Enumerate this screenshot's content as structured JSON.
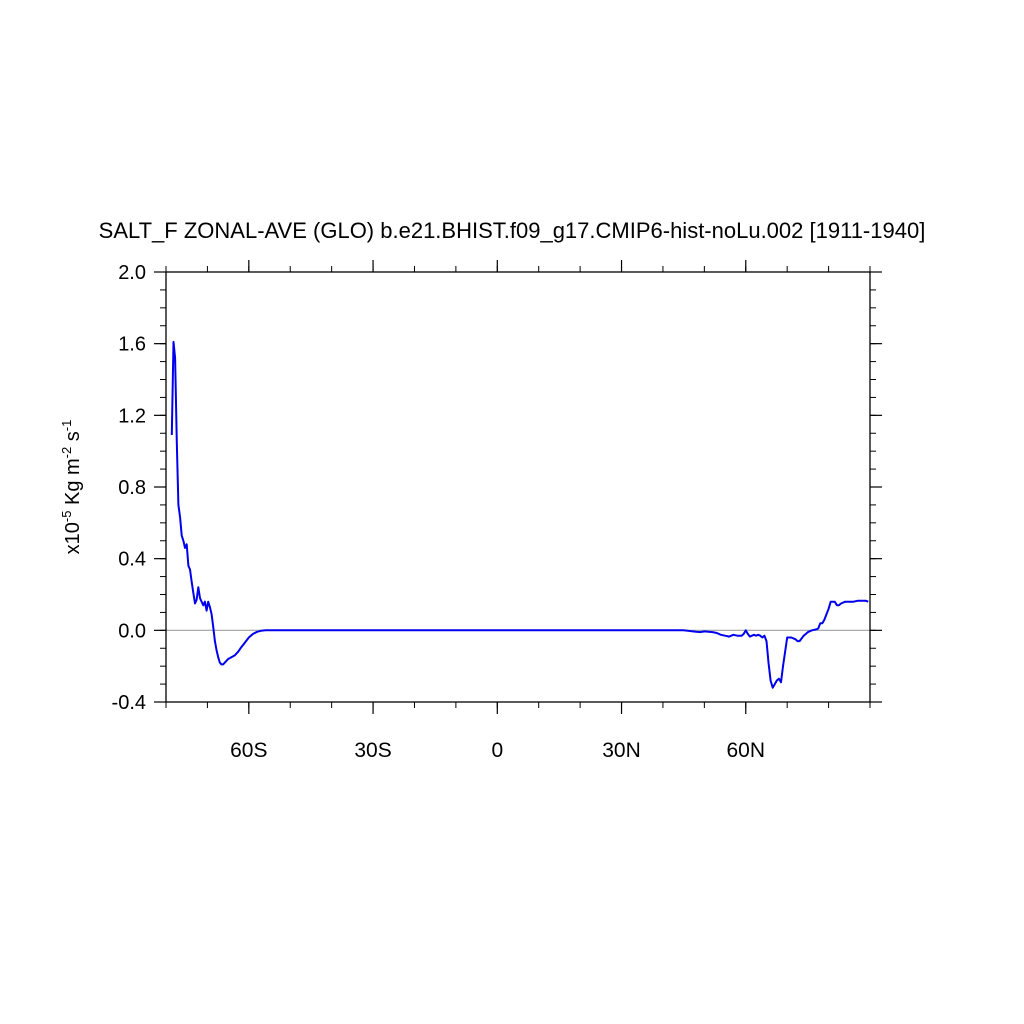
{
  "chart_data": {
    "type": "line",
    "title": "SALT_F ZONAL-AVE (GLO) b.e21.BHIST.f09_g17.CMIP6-hist-noLu.002 [1911-1940]",
    "ylabel": {
      "prefix": "x10",
      "exp": "-5",
      "mid": " Kg m",
      "exp2": "-2",
      "mid2": " s",
      "exp3": "-1"
    },
    "xlim": [
      -80,
      90
    ],
    "ylim": [
      -0.4,
      2.0
    ],
    "y_ticks": [
      {
        "value": -0.4,
        "label": "-0.4"
      },
      {
        "value": 0.0,
        "label": "0.0"
      },
      {
        "value": 0.4,
        "label": "0.4"
      },
      {
        "value": 0.8,
        "label": "0.8"
      },
      {
        "value": 1.2,
        "label": "1.2"
      },
      {
        "value": 1.6,
        "label": "1.6"
      },
      {
        "value": 2.0,
        "label": "2.0"
      }
    ],
    "x_ticks": [
      {
        "value": -60,
        "label": "60S"
      },
      {
        "value": -30,
        "label": "30S"
      },
      {
        "value": 0,
        "label": "0"
      },
      {
        "value": 30,
        "label": "30N"
      },
      {
        "value": 60,
        "label": "60N"
      }
    ],
    "zero_line": true,
    "grid": false,
    "line_color": "#0000ee",
    "zero_line_color": "#a0a0a0",
    "series": [
      {
        "x": [
          -78.6,
          -78.2,
          -77.8,
          -77.4,
          -77.0,
          -76.6,
          -76.2,
          -75.8,
          -75.4,
          -75.0,
          -74.6,
          -74.2,
          -73.8,
          -73.4,
          -73.0,
          -72.6,
          -72.2,
          -71.8,
          -71.4,
          -71.0,
          -70.6,
          -70.2,
          -69.8,
          -69.4,
          -69.0,
          -68.6,
          -68.2,
          -67.8,
          -67.4,
          -67.0,
          -66.6,
          -66.2,
          -65.8,
          -65.4,
          -65.0,
          -64.6,
          -64.2,
          -63.8,
          -63.4,
          -63.0,
          -62.6,
          -62.0,
          -61.0,
          -60.0,
          -59.0,
          -58.0,
          -57.0,
          -56.0,
          -55.0,
          -54.0,
          -53.0,
          -52.0,
          -50.0,
          -45.0,
          -30.0,
          0.0,
          30.0,
          45.0,
          46.0,
          47.0,
          48.0,
          49.0,
          50.0,
          51.0,
          52.0,
          53.0,
          54.0,
          55.0,
          56.0,
          57.0,
          58.0,
          59.0,
          59.5,
          60.0,
          60.5,
          61.0,
          61.5,
          62.0,
          62.5,
          63.0,
          63.5,
          64.0,
          64.5,
          65.0,
          65.5,
          66.0,
          66.5,
          67.0,
          67.5,
          68.0,
          68.5,
          69.0,
          70.0,
          71.0,
          72.0,
          72.5,
          73.0,
          74.0,
          75.0,
          76.0,
          77.0,
          77.5,
          78.0,
          78.5,
          79.0,
          79.5,
          80.0,
          80.5,
          81.0,
          81.5,
          82.0,
          82.5,
          83.0,
          84.0,
          85.0,
          86.0,
          87.0,
          88.0,
          89.0,
          89.6
        ],
        "y": [
          1.09,
          1.61,
          1.52,
          1.05,
          0.7,
          0.63,
          0.53,
          0.5,
          0.46,
          0.48,
          0.36,
          0.34,
          0.27,
          0.21,
          0.15,
          0.17,
          0.24,
          0.18,
          0.16,
          0.14,
          0.16,
          0.11,
          0.16,
          0.13,
          0.09,
          0.02,
          -0.06,
          -0.11,
          -0.15,
          -0.18,
          -0.19,
          -0.19,
          -0.18,
          -0.17,
          -0.16,
          -0.155,
          -0.15,
          -0.145,
          -0.14,
          -0.13,
          -0.12,
          -0.1,
          -0.07,
          -0.04,
          -0.02,
          -0.008,
          -0.002,
          0.0,
          0.0,
          0.0,
          0.0,
          0.0,
          0.0,
          0.0,
          0.0,
          0.0,
          0.0,
          0.0,
          -0.002,
          -0.005,
          -0.008,
          -0.01,
          -0.006,
          -0.008,
          -0.01,
          -0.015,
          -0.025,
          -0.03,
          -0.035,
          -0.025,
          -0.03,
          -0.03,
          -0.02,
          0.0,
          -0.02,
          -0.035,
          -0.03,
          -0.025,
          -0.03,
          -0.025,
          -0.03,
          -0.04,
          -0.03,
          -0.06,
          -0.18,
          -0.28,
          -0.32,
          -0.3,
          -0.28,
          -0.27,
          -0.29,
          -0.2,
          -0.04,
          -0.04,
          -0.05,
          -0.06,
          -0.06,
          -0.03,
          -0.01,
          0.0,
          0.005,
          0.01,
          0.04,
          0.04,
          0.06,
          0.09,
          0.12,
          0.16,
          0.16,
          0.16,
          0.14,
          0.14,
          0.15,
          0.16,
          0.16,
          0.16,
          0.165,
          0.165,
          0.165,
          0.16
        ]
      }
    ]
  }
}
